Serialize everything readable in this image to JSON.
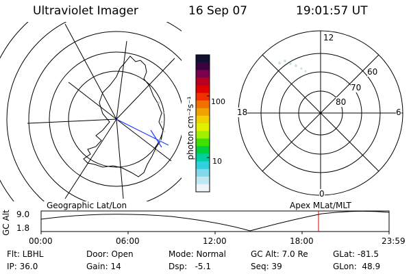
{
  "header": {
    "instrument": "Ultraviolet Imager",
    "date": "16 Sep 07",
    "time": "19:01:57 UT"
  },
  "geographic_map": {
    "caption": "Geographic Lat/Lon"
  },
  "colorbar": {
    "unit_label": "photon cm⁻²s⁻¹",
    "ticks": [
      "100",
      "10"
    ],
    "colors": [
      "#101030",
      "#3a0040",
      "#7a0050",
      "#b80020",
      "#e00000",
      "#f03000",
      "#f07000",
      "#f0a000",
      "#f0d000",
      "#e0f000",
      "#a0f000",
      "#40e000",
      "#00d040",
      "#00d0a0",
      "#30d0e0",
      "#80d8e8",
      "#c0e8f0",
      "#f0f4f8"
    ]
  },
  "polar_plot": {
    "clock_labels": {
      "top": "12",
      "left": "18",
      "right": "6",
      "bottom": "0"
    },
    "lat_labels": [
      "60",
      "70",
      "80"
    ],
    "caption": "Apex MLat/MLT"
  },
  "altitude_panel": {
    "ylabel": "GC Alt",
    "y_ticks": [
      "9.0",
      "1.8"
    ],
    "x_ticks": [
      "00:00",
      "06:00",
      "12:00",
      "18:00",
      "23:59"
    ],
    "marker_color": "#e00000"
  },
  "status": {
    "filter": "Flt: LBHL",
    "door": "Door: Open",
    "mode": "Mode: Normal",
    "gc_alt": "GC Alt: 7.0 Re",
    "glat": "GLat: -81.5",
    "ip": "IP: 36.0",
    "gain": "Gain: 14",
    "dsp": "Dsp:   -5.1",
    "seq": "Seq: 39",
    "glon": "GLon:  48.9"
  }
}
